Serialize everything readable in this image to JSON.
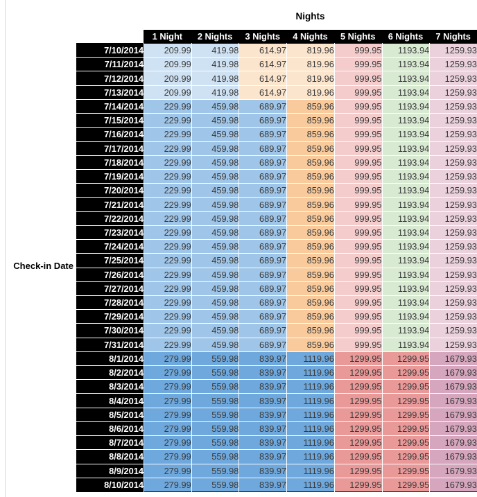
{
  "style": {
    "header_bg": "#000000",
    "header_text_color": "#ffffff",
    "date_col_bg": "#000000",
    "date_text_color": "#ffffff",
    "value_text_color": "#3a3a3a",
    "outer_border_color": "#000000",
    "gridline_color": "#d8d8d8",
    "palette": {
      "blue_light": "#cfe2f3",
      "blue_medium": "#9fc5e8",
      "blue_strong": "#6fa8dc",
      "orange_light": "#fce5cd",
      "orange_medium": "#f9cb9c",
      "red_light": "#f4cccc",
      "red_medium": "#ea9999",
      "green_light": "#d9ead3",
      "magenta_light": "#ead1dc",
      "magenta_medium": "#d5a6bd"
    },
    "group_colors": {
      "A": [
        "blue_light",
        "blue_light",
        "orange_light",
        "orange_light",
        "red_light",
        "green_light",
        "magenta_light"
      ],
      "B": [
        "blue_medium",
        "blue_medium",
        "blue_medium",
        "orange_medium",
        "red_light",
        "green_light",
        "magenta_light"
      ],
      "C": [
        "blue_strong",
        "blue_strong",
        "blue_strong",
        "blue_strong",
        "red_medium",
        "red_medium",
        "magenta_medium"
      ]
    }
  },
  "chart_data": {
    "type": "table",
    "title": "Nights",
    "row_axis_label": "Check-in Date",
    "columns": [
      "1 Night",
      "2 Nights",
      "3 Nights",
      "4 Nights",
      "5 Nights",
      "6 Nights",
      "7 Nights"
    ],
    "rows": [
      {
        "date": "7/10/2014",
        "group": "A",
        "values": [
          "209.99",
          "419.98",
          "614.97",
          "819.96",
          "999.95",
          "1193.94",
          "1259.93"
        ]
      },
      {
        "date": "7/11/2014",
        "group": "A",
        "values": [
          "209.99",
          "419.98",
          "614.97",
          "819.96",
          "999.95",
          "1193.94",
          "1259.93"
        ]
      },
      {
        "date": "7/12/2014",
        "group": "A",
        "values": [
          "209.99",
          "419.98",
          "614.97",
          "819.96",
          "999.95",
          "1193.94",
          "1259.93"
        ]
      },
      {
        "date": "7/13/2014",
        "group": "A",
        "values": [
          "209.99",
          "419.98",
          "614.97",
          "819.96",
          "999.95",
          "1193.94",
          "1259.93"
        ]
      },
      {
        "date": "7/14/2014",
        "group": "B",
        "values": [
          "229.99",
          "459.98",
          "689.97",
          "859.96",
          "999.95",
          "1193.94",
          "1259.93"
        ]
      },
      {
        "date": "7/15/2014",
        "group": "B",
        "values": [
          "229.99",
          "459.98",
          "689.97",
          "859.96",
          "999.95",
          "1193.94",
          "1259.93"
        ]
      },
      {
        "date": "7/16/2014",
        "group": "B",
        "values": [
          "229.99",
          "459.98",
          "689.97",
          "859.96",
          "999.95",
          "1193.94",
          "1259.93"
        ]
      },
      {
        "date": "7/17/2014",
        "group": "B",
        "values": [
          "229.99",
          "459.98",
          "689.97",
          "859.96",
          "999.95",
          "1193.94",
          "1259.93"
        ]
      },
      {
        "date": "7/18/2014",
        "group": "B",
        "values": [
          "229.99",
          "459.98",
          "689.97",
          "859.96",
          "999.95",
          "1193.94",
          "1259.93"
        ]
      },
      {
        "date": "7/19/2014",
        "group": "B",
        "values": [
          "229.99",
          "459.98",
          "689.97",
          "859.96",
          "999.95",
          "1193.94",
          "1259.93"
        ]
      },
      {
        "date": "7/20/2014",
        "group": "B",
        "values": [
          "229.99",
          "459.98",
          "689.97",
          "859.96",
          "999.95",
          "1193.94",
          "1259.93"
        ]
      },
      {
        "date": "7/21/2014",
        "group": "B",
        "values": [
          "229.99",
          "459.98",
          "689.97",
          "859.96",
          "999.95",
          "1193.94",
          "1259.93"
        ]
      },
      {
        "date": "7/22/2014",
        "group": "B",
        "values": [
          "229.99",
          "459.98",
          "689.97",
          "859.96",
          "999.95",
          "1193.94",
          "1259.93"
        ]
      },
      {
        "date": "7/23/2014",
        "group": "B",
        "values": [
          "229.99",
          "459.98",
          "689.97",
          "859.96",
          "999.95",
          "1193.94",
          "1259.93"
        ]
      },
      {
        "date": "7/24/2014",
        "group": "B",
        "values": [
          "229.99",
          "459.98",
          "689.97",
          "859.96",
          "999.95",
          "1193.94",
          "1259.93"
        ]
      },
      {
        "date": "7/25/2014",
        "group": "B",
        "values": [
          "229.99",
          "459.98",
          "689.97",
          "859.96",
          "999.95",
          "1193.94",
          "1259.93"
        ]
      },
      {
        "date": "7/26/2014",
        "group": "B",
        "values": [
          "229.99",
          "459.98",
          "689.97",
          "859.96",
          "999.95",
          "1193.94",
          "1259.93"
        ]
      },
      {
        "date": "7/27/2014",
        "group": "B",
        "values": [
          "229.99",
          "459.98",
          "689.97",
          "859.96",
          "999.95",
          "1193.94",
          "1259.93"
        ]
      },
      {
        "date": "7/28/2014",
        "group": "B",
        "values": [
          "229.99",
          "459.98",
          "689.97",
          "859.96",
          "999.95",
          "1193.94",
          "1259.93"
        ]
      },
      {
        "date": "7/29/2014",
        "group": "B",
        "values": [
          "229.99",
          "459.98",
          "689.97",
          "859.96",
          "999.95",
          "1193.94",
          "1259.93"
        ]
      },
      {
        "date": "7/30/2014",
        "group": "B",
        "values": [
          "229.99",
          "459.98",
          "689.97",
          "859.96",
          "999.95",
          "1193.94",
          "1259.93"
        ]
      },
      {
        "date": "7/31/2014",
        "group": "B",
        "values": [
          "229.99",
          "459.98",
          "689.97",
          "859.96",
          "999.95",
          "1193.94",
          "1259.93"
        ]
      },
      {
        "date": "8/1/2014",
        "group": "C",
        "values": [
          "279.99",
          "559.98",
          "839.97",
          "1119.96",
          "1299.95",
          "1299.95",
          "1679.93"
        ]
      },
      {
        "date": "8/2/2014",
        "group": "C",
        "values": [
          "279.99",
          "559.98",
          "839.97",
          "1119.96",
          "1299.95",
          "1299.95",
          "1679.93"
        ]
      },
      {
        "date": "8/3/2014",
        "group": "C",
        "values": [
          "279.99",
          "559.98",
          "839.97",
          "1119.96",
          "1299.95",
          "1299.95",
          "1679.93"
        ]
      },
      {
        "date": "8/4/2014",
        "group": "C",
        "values": [
          "279.99",
          "559.98",
          "839.97",
          "1119.96",
          "1299.95",
          "1299.95",
          "1679.93"
        ]
      },
      {
        "date": "8/5/2014",
        "group": "C",
        "values": [
          "279.99",
          "559.98",
          "839.97",
          "1119.96",
          "1299.95",
          "1299.95",
          "1679.93"
        ]
      },
      {
        "date": "8/6/2014",
        "group": "C",
        "values": [
          "279.99",
          "559.98",
          "839.97",
          "1119.96",
          "1299.95",
          "1299.95",
          "1679.93"
        ]
      },
      {
        "date": "8/7/2014",
        "group": "C",
        "values": [
          "279.99",
          "559.98",
          "839.97",
          "1119.96",
          "1299.95",
          "1299.95",
          "1679.93"
        ]
      },
      {
        "date": "8/8/2014",
        "group": "C",
        "values": [
          "279.99",
          "559.98",
          "839.97",
          "1119.96",
          "1299.95",
          "1299.95",
          "1679.93"
        ]
      },
      {
        "date": "8/9/2014",
        "group": "C",
        "values": [
          "279.99",
          "559.98",
          "839.97",
          "1119.96",
          "1299.95",
          "1299.95",
          "1679.93"
        ]
      },
      {
        "date": "8/10/2014",
        "group": "C",
        "values": [
          "279.99",
          "559.98",
          "839.97",
          "1119.96",
          "1299.95",
          "1299.95",
          "1679.93"
        ]
      }
    ]
  }
}
